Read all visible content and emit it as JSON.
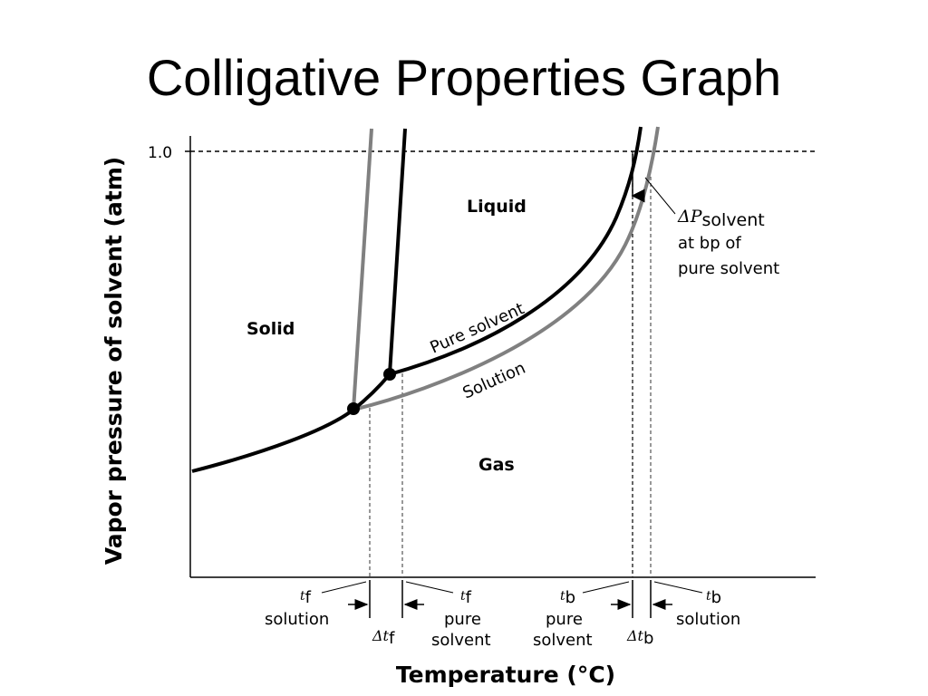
{
  "slide": {
    "title": "Colligative Properties Graph"
  },
  "chart_data": {
    "type": "line",
    "title": "",
    "xlabel": "Temperature (°C)",
    "ylabel": "Vapor pressure of solvent (atm)",
    "y_tick": "1.0",
    "regions": {
      "solid": "Solid",
      "liquid": "Liquid",
      "gas": "Gas"
    },
    "series": [
      {
        "name": "Pure solvent",
        "color": "#000000"
      },
      {
        "name": "Solution",
        "color": "#808080"
      }
    ],
    "annotations": {
      "delta_p": {
        "symbol": "ΔP",
        "sub": "solvent",
        "line2": "at bp of",
        "line3": "pure solvent"
      },
      "tf_solution": {
        "sym": "t",
        "sub": "f",
        "text": "solution"
      },
      "delta_tf": {
        "sym": "Δt",
        "sub": "f"
      },
      "tf_pure": {
        "sym": "t",
        "sub": "f",
        "line1": "pure",
        "line2": "solvent"
      },
      "tb_pure": {
        "sym": "t",
        "sub": "b",
        "line1": "pure",
        "line2": "solvent"
      },
      "delta_tb": {
        "sym": "Δt",
        "sub": "b"
      },
      "tb_solution": {
        "sym": "t",
        "sub": "b",
        "text": "solution"
      }
    }
  }
}
